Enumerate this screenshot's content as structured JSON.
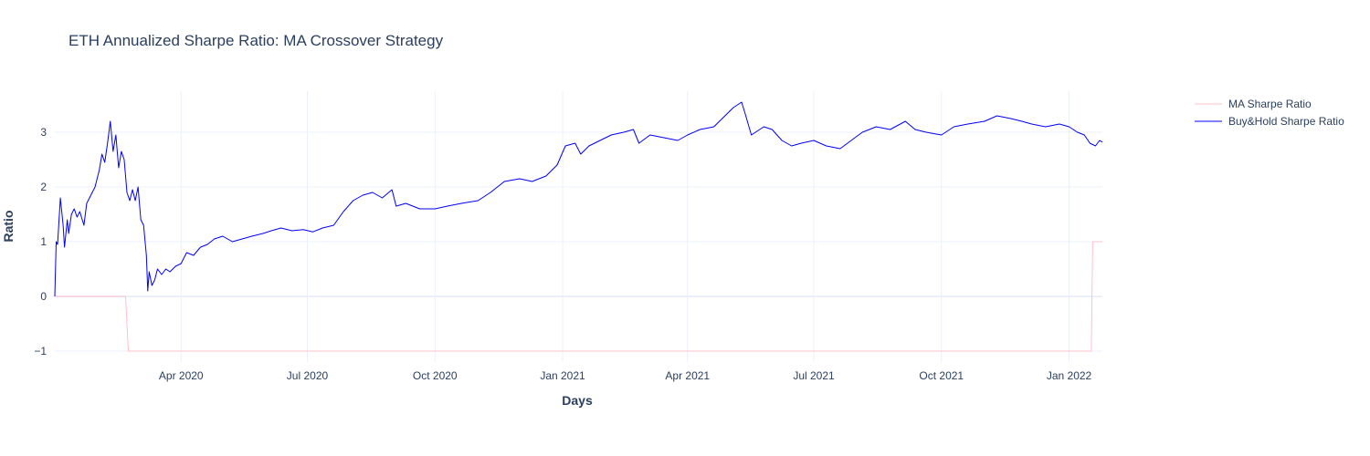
{
  "chart_data": {
    "type": "line",
    "title": "ETH Annualized Sharpe Ratio: MA Crossover Strategy",
    "xlabel": "Days",
    "ylabel": "Ratio",
    "xlim": [
      "2020-01-01",
      "2022-01-25"
    ],
    "ylim": [
      -1.2,
      3.75
    ],
    "x_ticks": [
      {
        "date": "2020-04-01",
        "label": "Apr 2020"
      },
      {
        "date": "2020-07-01",
        "label": "Jul 2020"
      },
      {
        "date": "2020-10-01",
        "label": "Oct 2020"
      },
      {
        "date": "2021-01-01",
        "label": "Jan 2021"
      },
      {
        "date": "2021-04-01",
        "label": "Apr 2021"
      },
      {
        "date": "2021-07-01",
        "label": "Jul 2021"
      },
      {
        "date": "2021-10-01",
        "label": "Oct 2021"
      },
      {
        "date": "2022-01-01",
        "label": "Jan 2022"
      }
    ],
    "y_ticks": [
      {
        "value": -1,
        "label": "−1"
      },
      {
        "value": 0,
        "label": "0"
      },
      {
        "value": 1,
        "label": "1"
      },
      {
        "value": 2,
        "label": "2"
      },
      {
        "value": 3,
        "label": "3"
      }
    ],
    "grid": true,
    "legend_position": "top-right",
    "series": [
      {
        "name": "MA Sharpe Ratio",
        "color": "#ffc0cb",
        "points": [
          [
            "2020-01-01",
            0
          ],
          [
            "2020-02-01",
            0
          ],
          [
            "2020-02-21",
            0
          ],
          [
            "2020-02-23",
            -1
          ],
          [
            "2021-06-01",
            -1
          ],
          [
            "2022-01-17",
            -1
          ],
          [
            "2022-01-18",
            1
          ],
          [
            "2022-01-25",
            1
          ]
        ]
      },
      {
        "name": "Buy&Hold Sharpe Ratio",
        "color": "#0000ff",
        "points": [
          [
            "2020-01-01",
            0
          ],
          [
            "2020-01-02",
            1.0
          ],
          [
            "2020-01-03",
            0.95
          ],
          [
            "2020-01-05",
            1.8
          ],
          [
            "2020-01-07",
            1.3
          ],
          [
            "2020-01-08",
            0.9
          ],
          [
            "2020-01-10",
            1.4
          ],
          [
            "2020-01-11",
            1.15
          ],
          [
            "2020-01-13",
            1.5
          ],
          [
            "2020-01-15",
            1.6
          ],
          [
            "2020-01-17",
            1.45
          ],
          [
            "2020-01-19",
            1.55
          ],
          [
            "2020-01-22",
            1.3
          ],
          [
            "2020-01-24",
            1.7
          ],
          [
            "2020-01-27",
            1.85
          ],
          [
            "2020-01-30",
            2.0
          ],
          [
            "2020-02-02",
            2.3
          ],
          [
            "2020-02-04",
            2.6
          ],
          [
            "2020-02-06",
            2.45
          ],
          [
            "2020-02-08",
            2.8
          ],
          [
            "2020-02-10",
            3.2
          ],
          [
            "2020-02-12",
            2.65
          ],
          [
            "2020-02-14",
            2.95
          ],
          [
            "2020-02-16",
            2.35
          ],
          [
            "2020-02-18",
            2.65
          ],
          [
            "2020-02-20",
            2.5
          ],
          [
            "2020-02-22",
            1.9
          ],
          [
            "2020-02-24",
            1.75
          ],
          [
            "2020-02-26",
            1.95
          ],
          [
            "2020-02-28",
            1.75
          ],
          [
            "2020-03-01",
            2.0
          ],
          [
            "2020-03-03",
            1.4
          ],
          [
            "2020-03-05",
            1.3
          ],
          [
            "2020-03-07",
            0.75
          ],
          [
            "2020-03-08",
            0.1
          ],
          [
            "2020-03-09",
            0.45
          ],
          [
            "2020-03-11",
            0.2
          ],
          [
            "2020-03-13",
            0.3
          ],
          [
            "2020-03-15",
            0.5
          ],
          [
            "2020-03-18",
            0.4
          ],
          [
            "2020-03-21",
            0.5
          ],
          [
            "2020-03-24",
            0.45
          ],
          [
            "2020-03-28",
            0.55
          ],
          [
            "2020-04-01",
            0.6
          ],
          [
            "2020-04-05",
            0.8
          ],
          [
            "2020-04-10",
            0.75
          ],
          [
            "2020-04-15",
            0.9
          ],
          [
            "2020-04-20",
            0.95
          ],
          [
            "2020-04-25",
            1.05
          ],
          [
            "2020-05-01",
            1.1
          ],
          [
            "2020-05-08",
            1.0
          ],
          [
            "2020-05-15",
            1.05
          ],
          [
            "2020-05-22",
            1.1
          ],
          [
            "2020-05-30",
            1.15
          ],
          [
            "2020-06-05",
            1.2
          ],
          [
            "2020-06-12",
            1.25
          ],
          [
            "2020-06-20",
            1.2
          ],
          [
            "2020-06-28",
            1.22
          ],
          [
            "2020-07-05",
            1.18
          ],
          [
            "2020-07-12",
            1.25
          ],
          [
            "2020-07-20",
            1.3
          ],
          [
            "2020-07-27",
            1.55
          ],
          [
            "2020-08-03",
            1.75
          ],
          [
            "2020-08-10",
            1.85
          ],
          [
            "2020-08-17",
            1.9
          ],
          [
            "2020-08-24",
            1.8
          ],
          [
            "2020-08-31",
            1.95
          ],
          [
            "2020-09-03",
            1.65
          ],
          [
            "2020-09-10",
            1.7
          ],
          [
            "2020-09-20",
            1.6
          ],
          [
            "2020-10-01",
            1.6
          ],
          [
            "2020-10-10",
            1.65
          ],
          [
            "2020-10-20",
            1.7
          ],
          [
            "2020-11-01",
            1.75
          ],
          [
            "2020-11-10",
            1.9
          ],
          [
            "2020-11-20",
            2.1
          ],
          [
            "2020-12-01",
            2.15
          ],
          [
            "2020-12-10",
            2.1
          ],
          [
            "2020-12-20",
            2.2
          ],
          [
            "2020-12-28",
            2.4
          ],
          [
            "2021-01-03",
            2.75
          ],
          [
            "2021-01-10",
            2.8
          ],
          [
            "2021-01-14",
            2.6
          ],
          [
            "2021-01-20",
            2.75
          ],
          [
            "2021-01-28",
            2.85
          ],
          [
            "2021-02-05",
            2.95
          ],
          [
            "2021-02-14",
            3.0
          ],
          [
            "2021-02-21",
            3.05
          ],
          [
            "2021-02-25",
            2.8
          ],
          [
            "2021-03-05",
            2.95
          ],
          [
            "2021-03-15",
            2.9
          ],
          [
            "2021-03-25",
            2.85
          ],
          [
            "2021-04-01",
            2.95
          ],
          [
            "2021-04-10",
            3.05
          ],
          [
            "2021-04-20",
            3.1
          ],
          [
            "2021-04-28",
            3.3
          ],
          [
            "2021-05-04",
            3.45
          ],
          [
            "2021-05-10",
            3.55
          ],
          [
            "2021-05-13",
            3.3
          ],
          [
            "2021-05-17",
            2.95
          ],
          [
            "2021-05-20",
            3.0
          ],
          [
            "2021-05-26",
            3.1
          ],
          [
            "2021-06-01",
            3.05
          ],
          [
            "2021-06-08",
            2.85
          ],
          [
            "2021-06-15",
            2.75
          ],
          [
            "2021-06-22",
            2.8
          ],
          [
            "2021-07-01",
            2.85
          ],
          [
            "2021-07-10",
            2.75
          ],
          [
            "2021-07-20",
            2.7
          ],
          [
            "2021-07-28",
            2.85
          ],
          [
            "2021-08-05",
            3.0
          ],
          [
            "2021-08-15",
            3.1
          ],
          [
            "2021-08-25",
            3.05
          ],
          [
            "2021-09-05",
            3.2
          ],
          [
            "2021-09-12",
            3.05
          ],
          [
            "2021-09-20",
            3.0
          ],
          [
            "2021-10-01",
            2.95
          ],
          [
            "2021-10-10",
            3.1
          ],
          [
            "2021-10-20",
            3.15
          ],
          [
            "2021-11-01",
            3.2
          ],
          [
            "2021-11-10",
            3.3
          ],
          [
            "2021-11-20",
            3.25
          ],
          [
            "2021-11-28",
            3.2
          ],
          [
            "2021-12-05",
            3.15
          ],
          [
            "2021-12-15",
            3.1
          ],
          [
            "2021-12-25",
            3.15
          ],
          [
            "2022-01-01",
            3.1
          ],
          [
            "2022-01-07",
            3.0
          ],
          [
            "2022-01-12",
            2.95
          ],
          [
            "2022-01-16",
            2.8
          ],
          [
            "2022-01-20",
            2.75
          ],
          [
            "2022-01-23",
            2.85
          ],
          [
            "2022-01-25",
            2.82
          ]
        ]
      }
    ]
  }
}
